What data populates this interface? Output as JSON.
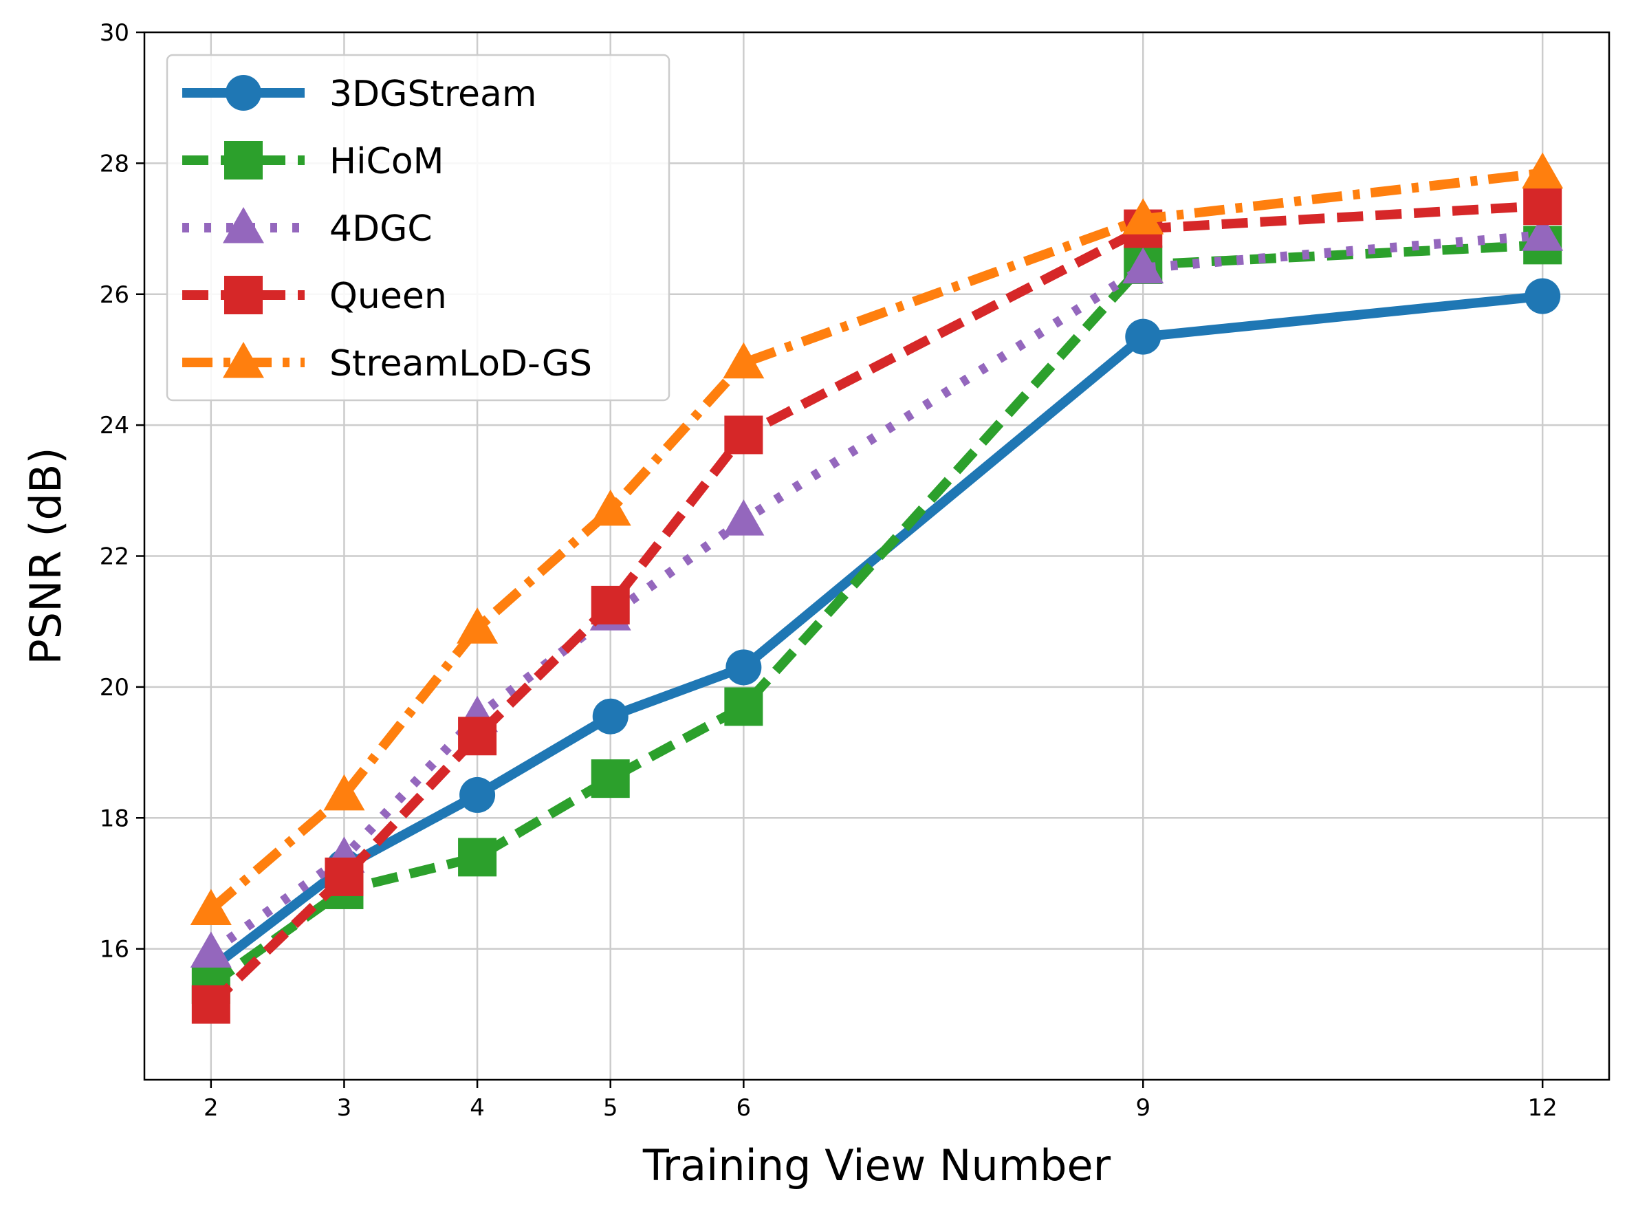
{
  "chart_data": {
    "type": "line",
    "title": "",
    "xlabel": "Training View Number",
    "ylabel": "PSNR (dB)",
    "x": [
      2,
      3,
      4,
      5,
      6,
      9,
      12
    ],
    "x_tick_labels": [
      "2",
      "3",
      "4",
      "5",
      "6",
      "9",
      "12"
    ],
    "xlim": [
      1.5,
      12.5
    ],
    "ylim": [
      14,
      30
    ],
    "y_ticks": [
      16,
      18,
      20,
      22,
      24,
      26,
      28,
      30
    ],
    "y_tick_labels": [
      "16",
      "18",
      "20",
      "22",
      "24",
      "26",
      "28",
      "30"
    ],
    "grid": true,
    "legend_position": "top-left",
    "series": [
      {
        "name": "3DGStream",
        "color": "#1f77b4",
        "marker": "circle",
        "dash": "solid",
        "values": [
          15.7,
          17.25,
          18.35,
          19.55,
          20.3,
          25.35,
          25.97
        ]
      },
      {
        "name": "HiCoM",
        "color": "#2ca02c",
        "marker": "square",
        "dash": "dashed",
        "values": [
          15.45,
          16.9,
          17.4,
          18.6,
          19.7,
          26.45,
          26.75
        ]
      },
      {
        "name": "4DGC",
        "color": "#9467bd",
        "marker": "triangle",
        "dash": "dotted",
        "values": [
          15.95,
          17.4,
          19.55,
          21.1,
          22.55,
          26.4,
          26.9
        ]
      },
      {
        "name": "Queen",
        "color": "#d62728",
        "marker": "square",
        "dash": "dashed",
        "values": [
          15.15,
          17.1,
          19.25,
          21.25,
          23.85,
          27.0,
          27.35
        ]
      },
      {
        "name": "StreamLoD-GS",
        "color": "#ff7f0e",
        "marker": "triangle",
        "dash": "dashdot",
        "values": [
          16.6,
          18.35,
          20.9,
          22.7,
          24.95,
          27.15,
          27.85
        ]
      }
    ]
  }
}
